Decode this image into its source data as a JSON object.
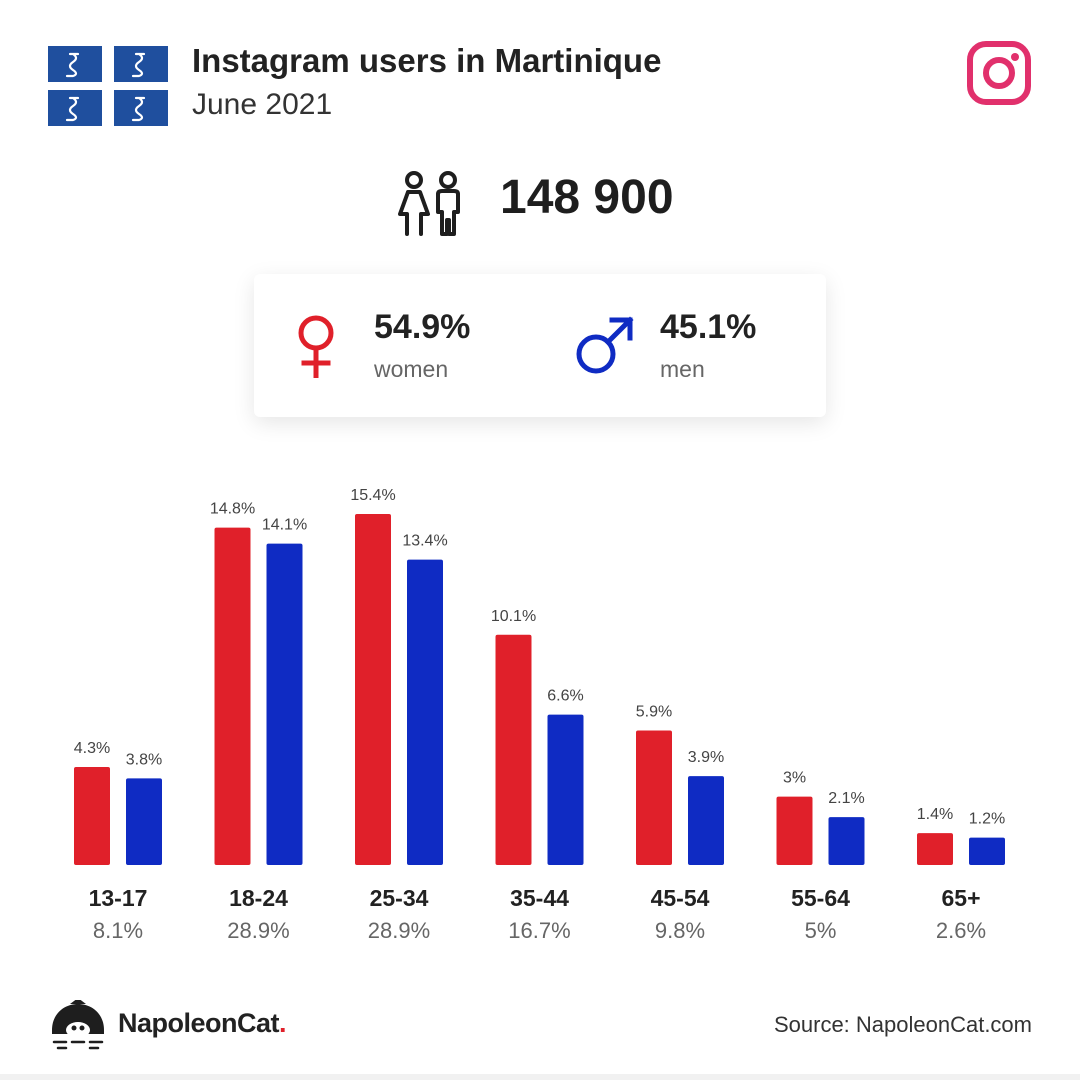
{
  "header": {
    "title": "Instagram users in Martinique",
    "subtitle": "June 2021",
    "flag_icon": "martinique-flag-icon",
    "platform_icon": "instagram-icon"
  },
  "total": {
    "value": "148 900",
    "icon": "people-icon"
  },
  "gender": {
    "women": {
      "pct": "54.9%",
      "label": "women",
      "icon": "female-symbol-icon"
    },
    "men": {
      "pct": "45.1%",
      "label": "men",
      "icon": "male-symbol-icon"
    }
  },
  "colors": {
    "women": "#e0202a",
    "men": "#0f2bc3",
    "instagram": "#e1306c",
    "flag": "#1f4f9e"
  },
  "chart_data": {
    "type": "bar",
    "categories": [
      "13-17",
      "18-24",
      "25-34",
      "35-44",
      "45-54",
      "55-64",
      "65+"
    ],
    "group_totals": [
      "8.1%",
      "28.9%",
      "28.9%",
      "16.7%",
      "9.8%",
      "5%",
      "2.6%"
    ],
    "series": [
      {
        "values": [
          4.3,
          14.8,
          15.4,
          10.1,
          5.9,
          3,
          1.4
        ],
        "labels": [
          "4.3%",
          "14.8%",
          "15.4%",
          "10.1%",
          "5.9%",
          "3%",
          "1.4%"
        ],
        "color": "#e0202a"
      },
      {
        "values": [
          3.8,
          14.1,
          13.4,
          6.6,
          3.9,
          2.1,
          1.2
        ],
        "labels": [
          "3.8%",
          "14.1%",
          "13.4%",
          "6.6%",
          "3.9%",
          "2.1%",
          "1.2%"
        ],
        "color": "#0f2bc3"
      }
    ],
    "ylim": [
      0,
      15.4
    ],
    "grid": false,
    "legend": "none"
  },
  "footer": {
    "brand": "NapoleonCat",
    "brand_dot": ".",
    "logo_icon": "napoleoncat-logo-icon",
    "source": "Source: NapoleonCat.com"
  }
}
